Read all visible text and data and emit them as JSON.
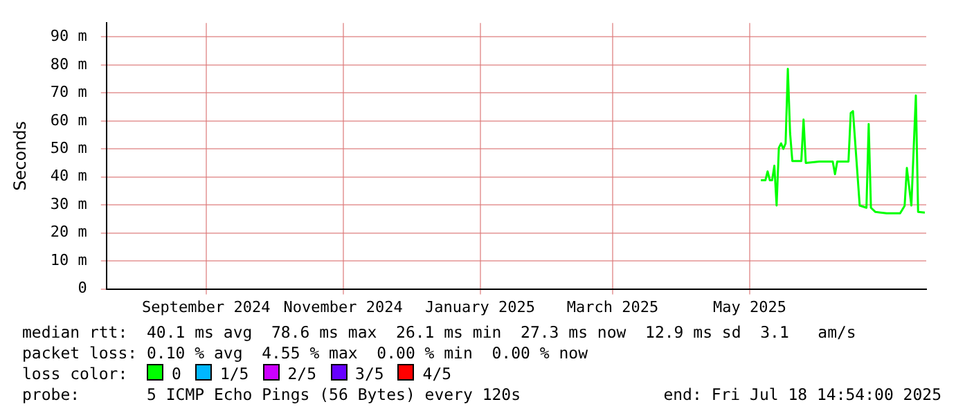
{
  "chart_data": {
    "type": "line",
    "ylabel": "Seconds",
    "xlim": [
      "2024-07-18T14:54",
      "2025-07-18T14:54"
    ],
    "xticks": [
      {
        "value": "2024-09-01",
        "label": "September 2024"
      },
      {
        "value": "2024-11-01",
        "label": "November 2024"
      },
      {
        "value": "2025-01-01",
        "label": "January 2025"
      },
      {
        "value": "2025-03-01",
        "label": "March 2025"
      },
      {
        "value": "2025-05-01",
        "label": "May 2025"
      }
    ],
    "ylim": [
      0,
      95
    ],
    "yticks": [
      {
        "value": 0,
        "label": "0"
      },
      {
        "value": 10,
        "label": "10 m"
      },
      {
        "value": 20,
        "label": "20 m"
      },
      {
        "value": 30,
        "label": "30 m"
      },
      {
        "value": 40,
        "label": "40 m"
      },
      {
        "value": 50,
        "label": "50 m"
      },
      {
        "value": 60,
        "label": "60 m"
      },
      {
        "value": 70,
        "label": "70 m"
      },
      {
        "value": 80,
        "label": "80 m"
      },
      {
        "value": 90,
        "label": "90 m"
      }
    ],
    "grid": true,
    "legend": "bottom",
    "marker": "none",
    "x": [
      "2025-05-06",
      "2025-05-08",
      "2025-05-09",
      "2025-05-10",
      "2025-05-11",
      "2025-05-12",
      "2025-05-13",
      "2025-05-14",
      "2025-05-15",
      "2025-05-16",
      "2025-05-17",
      "2025-05-18",
      "2025-05-19",
      "2025-05-20",
      "2025-05-24",
      "2025-05-25",
      "2025-05-26",
      "2025-06-01",
      "2025-06-07",
      "2025-06-08",
      "2025-06-09",
      "2025-06-14",
      "2025-06-15",
      "2025-06-16",
      "2025-06-18",
      "2025-06-19",
      "2025-06-22",
      "2025-06-23",
      "2025-06-24",
      "2025-06-26",
      "2025-07-01",
      "2025-07-07",
      "2025-07-09",
      "2025-07-10",
      "2025-07-12",
      "2025-07-14",
      "2025-07-15",
      "2025-07-18"
    ],
    "series": [
      {
        "name": "0",
        "color": "#00ff00",
        "values": [
          38.8,
          38.8,
          42,
          38.8,
          38.8,
          44,
          29.8,
          50.4,
          52,
          50,
          52,
          78.6,
          55.7,
          45.7,
          45.7,
          60.5,
          45,
          45.5,
          45.5,
          41,
          45.5,
          45.5,
          62.8,
          63.5,
          41,
          29.8,
          29,
          58.9,
          29,
          27.5,
          27,
          27,
          29.7,
          43.2,
          29.8,
          69.1,
          27.5,
          27.3
        ]
      },
      {
        "name": "1/5",
        "color": "#00b8ff",
        "values": [
          null,
          null,
          null,
          null,
          null,
          null,
          null,
          null,
          null,
          null,
          null,
          null,
          null,
          null,
          null,
          null,
          null,
          null,
          null,
          null,
          null,
          null,
          null,
          null,
          null,
          null,
          null,
          null,
          null,
          null,
          null,
          null,
          null,
          null,
          null,
          null,
          null,
          null
        ]
      },
      {
        "name": "2/5",
        "color": "#cc00ff",
        "values": [
          null,
          null,
          null,
          null,
          null,
          null,
          null,
          null,
          null,
          null,
          null,
          null,
          null,
          null,
          null,
          null,
          null,
          null,
          null,
          null,
          null,
          null,
          null,
          null,
          null,
          null,
          null,
          null,
          null,
          null,
          null,
          null,
          null,
          null,
          null,
          null,
          null,
          null
        ]
      },
      {
        "name": "3/5",
        "color": "#6600ff",
        "values": [
          null,
          null,
          null,
          null,
          null,
          null,
          null,
          null,
          null,
          null,
          null,
          null,
          null,
          null,
          null,
          null,
          null,
          null,
          null,
          null,
          null,
          null,
          null,
          null,
          null,
          null,
          null,
          null,
          null,
          null,
          null,
          null,
          null,
          null,
          null,
          null,
          null,
          null
        ]
      },
      {
        "name": "4/5",
        "color": "#ff0000",
        "values": [
          null,
          null,
          null,
          null,
          null,
          null,
          null,
          null,
          null,
          null,
          null,
          null,
          null,
          null,
          null,
          null,
          null,
          null,
          null,
          null,
          null,
          null,
          null,
          null,
          null,
          null,
          null,
          null,
          null,
          null,
          null,
          null,
          null,
          null,
          null,
          null,
          null,
          null
        ]
      }
    ],
    "legend_title": "loss color:",
    "annotations": [
      "median rtt:  40.1 ms avg  78.6 ms max  26.1 ms min  27.3 ms now  12.9 ms sd  3.1   am/s",
      "packet loss: 0.10 % avg  4.55 % max  0.00 % min  0.00 % now",
      "probe:       5 ICMP Echo Pings (56 Bytes) every 120s",
      "end: Fri Jul 18 14:54:00 2025"
    ]
  }
}
